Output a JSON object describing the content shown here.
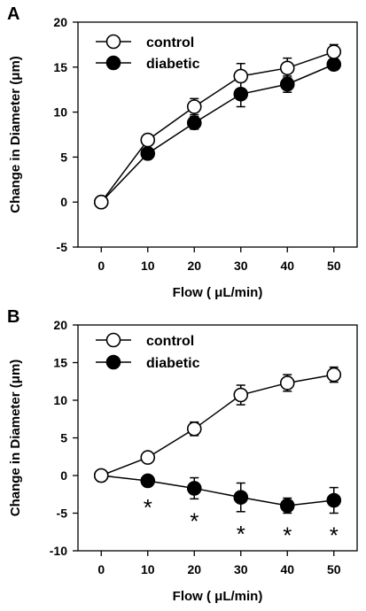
{
  "chart_data": [
    {
      "panel": "A",
      "type": "line",
      "xlabel": "Flow ( μL/min)",
      "ylabel": "Change in Diameter (μm)",
      "x": [
        0,
        10,
        20,
        30,
        40,
        50
      ],
      "xlim": [
        -5,
        55
      ],
      "ylim": [
        -5,
        20
      ],
      "yticks": [
        -5,
        0,
        5,
        10,
        15,
        20
      ],
      "legend_position": "top-left",
      "series": [
        {
          "name": "control",
          "marker": "open-circle",
          "values": [
            0,
            6.9,
            10.6,
            14.0,
            14.9,
            16.7
          ],
          "errors": [
            0,
            0.6,
            0.9,
            1.4,
            1.1,
            0.8
          ]
        },
        {
          "name": "diabetic",
          "marker": "filled-circle",
          "values": [
            0,
            5.4,
            8.8,
            12.0,
            13.1,
            15.3
          ],
          "errors": [
            0,
            0.5,
            0.7,
            1.4,
            0.9,
            0.6
          ]
        }
      ],
      "annotations": []
    },
    {
      "panel": "B",
      "type": "line",
      "xlabel": "Flow ( μL/min)",
      "ylabel": "Change in Diameter (μm)",
      "x": [
        0,
        10,
        20,
        30,
        40,
        50
      ],
      "xlim": [
        -5,
        55
      ],
      "ylim": [
        -10,
        20
      ],
      "yticks": [
        -10,
        -5,
        0,
        5,
        10,
        15,
        20
      ],
      "legend_position": "top-left",
      "series": [
        {
          "name": "control",
          "marker": "open-circle",
          "values": [
            0,
            2.4,
            6.2,
            10.7,
            12.3,
            13.4
          ],
          "errors": [
            0,
            0.6,
            0.9,
            1.3,
            1.1,
            1.0
          ]
        },
        {
          "name": "diabetic",
          "marker": "filled-circle",
          "values": [
            0,
            -0.7,
            -1.7,
            -2.9,
            -4.0,
            -3.3
          ],
          "errors": [
            0,
            0.6,
            1.4,
            1.9,
            1.0,
            1.7
          ]
        }
      ],
      "annotations": [
        {
          "x": 10,
          "text": "*"
        },
        {
          "x": 20,
          "text": "*"
        },
        {
          "x": 30,
          "text": "*"
        },
        {
          "x": 40,
          "text": "*"
        },
        {
          "x": 50,
          "text": "*"
        }
      ]
    }
  ]
}
